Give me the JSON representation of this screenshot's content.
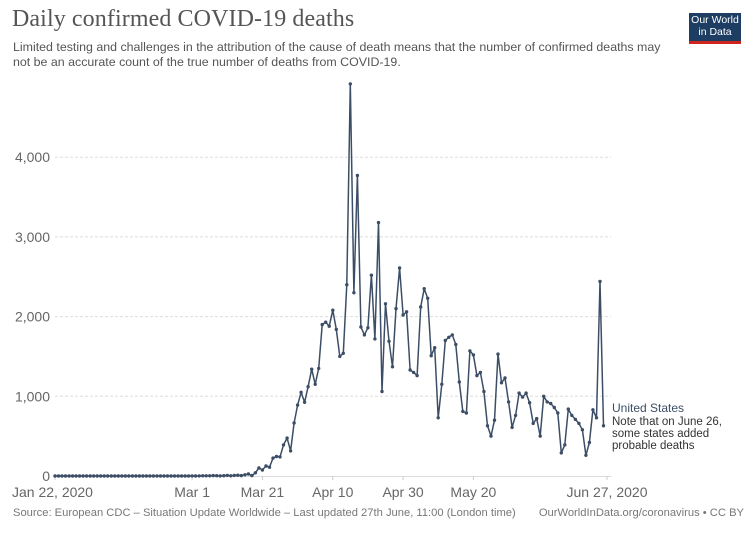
{
  "header": {
    "title": "Daily confirmed COVID-19 deaths",
    "subtitle": "Limited testing and challenges in the attribution of the cause of death means that the number of confirmed deaths may not be an accurate count of the true number of deaths from COVID-19."
  },
  "logo": {
    "line1": "Our World",
    "line2": "in Data",
    "bg_color": "#1d3d63",
    "accent_color": "#ce261e"
  },
  "footer": {
    "source": "Source: European CDC – Situation Update Worldwide – Last updated 27th June, 11:00 (London time)",
    "credit": "OurWorldInData.org/coronavirus • CC BY"
  },
  "chart_data": {
    "type": "line",
    "title": "Daily confirmed COVID-19 deaths",
    "xlabel": "",
    "ylabel": "",
    "ylim": [
      0,
      4900
    ],
    "yticks": [
      0,
      1000,
      2000,
      3000,
      4000
    ],
    "ytick_labels": [
      "0",
      "1,000",
      "2,000",
      "3,000",
      "4,000"
    ],
    "xticks": [
      {
        "day": 0,
        "label": "Jan 22, 2020"
      },
      {
        "day": 39,
        "label": "Mar 1"
      },
      {
        "day": 59,
        "label": "Mar 21"
      },
      {
        "day": 79,
        "label": "Apr 10"
      },
      {
        "day": 99,
        "label": "Apr 30"
      },
      {
        "day": 119,
        "label": "May 20"
      },
      {
        "day": 157,
        "label": "Jun 27, 2020"
      }
    ],
    "grid": "horizontal-dashed",
    "line_color": "#3c4e66",
    "series": [
      {
        "name": "United States",
        "annotation": [
          "Note that on June 26,",
          "some states added",
          "probable deaths"
        ],
        "start_date": "2020-01-22",
        "values": [
          0,
          0,
          0,
          0,
          0,
          0,
          0,
          0,
          0,
          0,
          0,
          0,
          0,
          0,
          0,
          0,
          0,
          0,
          0,
          0,
          0,
          0,
          0,
          0,
          0,
          0,
          0,
          0,
          0,
          0,
          0,
          0,
          0,
          0,
          0,
          0,
          0,
          0,
          0,
          1,
          0,
          1,
          3,
          3,
          2,
          5,
          4,
          1,
          4,
          8,
          3,
          7,
          10,
          5,
          15,
          25,
          5,
          40,
          100,
          75,
          125,
          110,
          225,
          245,
          240,
          390,
          475,
          315,
          665,
          890,
          1050,
          925,
          1120,
          1340,
          1150,
          1350,
          1900,
          1930,
          1880,
          2080,
          1840,
          1500,
          1540,
          2400,
          4920,
          2300,
          3770,
          1870,
          1770,
          1860,
          2520,
          1720,
          3180,
          1060,
          2160,
          1690,
          1370,
          2100,
          2610,
          2020,
          2060,
          1330,
          1300,
          1260,
          2120,
          2350,
          2230,
          1510,
          1610,
          730,
          1150,
          1700,
          1740,
          1770,
          1650,
          1180,
          810,
          790,
          1570,
          1520,
          1260,
          1300,
          1060,
          630,
          500,
          700,
          1530,
          1170,
          1230,
          930,
          610,
          760,
          1040,
          990,
          1040,
          920,
          660,
          720,
          500,
          1000,
          930,
          910,
          860,
          790,
          290,
          390,
          840,
          760,
          710,
          660,
          580,
          260,
          420,
          830,
          730,
          2440,
          630
        ]
      }
    ]
  }
}
